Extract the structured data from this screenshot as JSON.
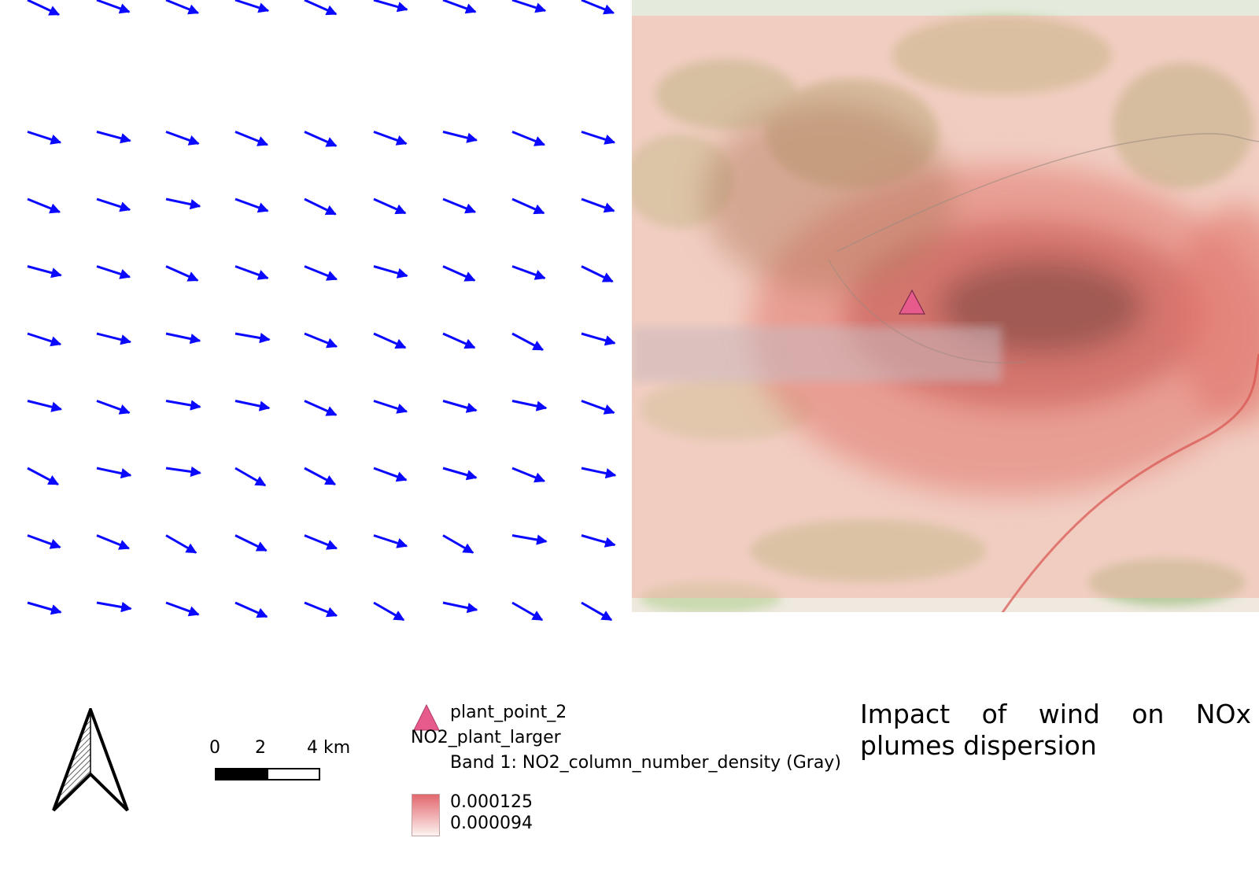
{
  "title": "Impact of wind on NOx plumes dispersion",
  "scale_bar": {
    "labels": [
      "0",
      "2",
      "4 km"
    ]
  },
  "legend": {
    "point_layer": {
      "label": "plant_point_2",
      "symbol": "triangle",
      "color": "#e75a8c"
    },
    "raster_layer": {
      "name": "NO2_plant_larger",
      "band": "Band 1: NO2_column_number_density (Gray)",
      "max_value": "0.000125",
      "min_value": "0.000094",
      "ramp_colors": [
        "#e2676e",
        "#fdf3f1"
      ]
    }
  },
  "wind_field": {
    "arrow_color": "#0a08ff",
    "rows": 10,
    "cols": 9,
    "direction": "east-southeast"
  },
  "map": {
    "basemap": "OpenStreetMap",
    "plume_color": "#c44a4e",
    "plant_marker": {
      "label": "plant_point_2",
      "color": "#e75a8c"
    }
  },
  "north_arrow": {
    "icon": "north-arrow-icon"
  }
}
